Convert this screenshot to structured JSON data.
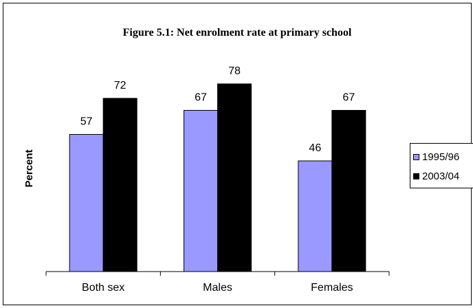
{
  "chart_data": {
    "type": "bar",
    "title": "Figure 5.1: Net enrolment rate at primary school",
    "ylabel": "Percent",
    "xlabel": "",
    "categories": [
      "Both sex",
      "Males",
      "Females"
    ],
    "series": [
      {
        "name": "1995/96",
        "values": [
          57,
          67,
          46
        ],
        "color": "#9999ff"
      },
      {
        "name": "2003/04",
        "values": [
          72,
          78,
          67
        ],
        "color": "#000000"
      }
    ],
    "ylim": [
      0,
      100
    ],
    "grid": false,
    "legend": "right"
  }
}
